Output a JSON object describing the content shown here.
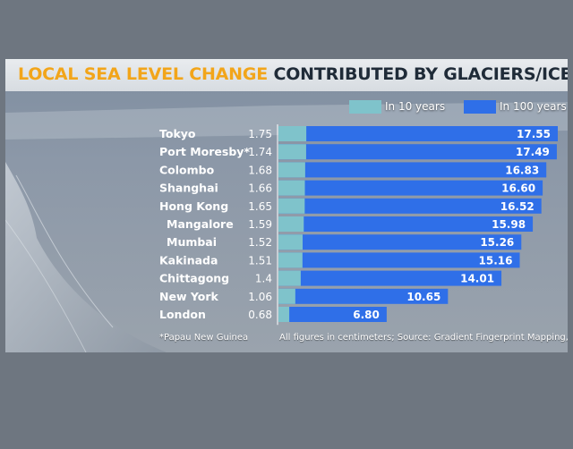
{
  "title_part1": "LOCAL SEA LEVEL CHANGE",
  "title_part2": "CONTRIBUTED BY GLACIERS/ICE SHEETS",
  "footnote": "*Papau New Guinea",
  "source": "All figures in centimeters; Source: Gradient Fingerprint Mapping, Nasa",
  "colors": {
    "series_10": "#7fc3cb",
    "series_100": "#2f6fe8",
    "title_accent": "#f2a51a",
    "title_dark": "#1f2b38"
  },
  "chart_data": {
    "type": "bar",
    "orientation": "horizontal",
    "title": "LOCAL SEA LEVEL CHANGE CONTRIBUTED BY GLACIERS/ICE SHEETS",
    "legend_position": "top-right",
    "categories": [
      "Tokyo",
      "Port Moresby*",
      "Colombo",
      "Shanghai",
      "Hong Kong",
      "Mangalore",
      "Mumbai",
      "Kakinada",
      "Chittagong",
      "New York",
      "London"
    ],
    "series": [
      {
        "name": "In 10 years",
        "values": [
          1.75,
          1.74,
          1.68,
          1.66,
          1.65,
          1.59,
          1.52,
          1.51,
          1.4,
          1.06,
          0.68
        ]
      },
      {
        "name": "In 100 years",
        "values": [
          17.55,
          17.49,
          16.83,
          16.6,
          16.52,
          15.98,
          15.26,
          15.16,
          14.01,
          10.65,
          6.8
        ]
      }
    ],
    "value_labels_10": [
      "1.75",
      "1.74",
      "1.68",
      "1.66",
      "1.65",
      "1.59",
      "1.52",
      "1.51",
      "1.4",
      "1.06",
      "0.68"
    ],
    "value_labels_100": [
      "17.55",
      "17.49",
      "16.83",
      "16.60",
      "16.52",
      "15.98",
      "15.26",
      "15.16",
      "14.01",
      "10.65",
      "6.80"
    ],
    "indented_categories": [
      "Mangalore",
      "Mumbai"
    ],
    "xlim": [
      0,
      17.55
    ],
    "unit": "centimeters"
  }
}
